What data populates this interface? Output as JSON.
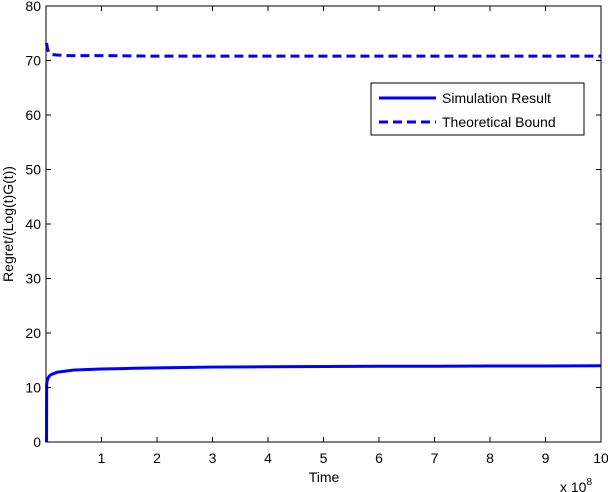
{
  "chart_data": {
    "type": "line",
    "title": "",
    "xlabel": "Time",
    "ylabel": "Regret/(Log(t)G(t))",
    "x_multiplier_label": "x 10",
    "x_multiplier_exponent": "8",
    "xlim": [
      0,
      10
    ],
    "ylim": [
      0,
      80
    ],
    "xticks": [
      1,
      2,
      3,
      4,
      5,
      6,
      7,
      8,
      9,
      10
    ],
    "yticks": [
      0,
      10,
      20,
      30,
      40,
      50,
      60,
      70,
      80
    ],
    "grid": false,
    "legend_position": "top-right",
    "series": [
      {
        "name": "Simulation Result",
        "style": "solid",
        "color": "#0000ff",
        "x": [
          0.01,
          0.012,
          0.02,
          0.04,
          0.07,
          0.1,
          0.2,
          0.35,
          0.5,
          0.75,
          1,
          1.5,
          2,
          3,
          4,
          5,
          6,
          7,
          8,
          9,
          10
        ],
        "y": [
          0,
          10.5,
          11.2,
          11.8,
          12.2,
          12.4,
          12.8,
          13.0,
          13.2,
          13.3,
          13.4,
          13.5,
          13.6,
          13.75,
          13.8,
          13.85,
          13.9,
          13.9,
          13.95,
          13.95,
          14.0
        ]
      },
      {
        "name": "Theoretical Bound",
        "style": "dashed",
        "color": "#0000ff",
        "x": [
          0.01,
          0.03,
          0.06,
          0.1,
          0.2,
          0.4,
          1,
          2,
          3,
          4,
          5,
          6,
          7,
          8,
          9,
          10
        ],
        "y": [
          73.2,
          72.0,
          71.4,
          71.1,
          71.0,
          70.9,
          70.9,
          70.8,
          70.8,
          70.8,
          70.8,
          70.8,
          70.8,
          70.8,
          70.8,
          70.8
        ]
      }
    ]
  }
}
